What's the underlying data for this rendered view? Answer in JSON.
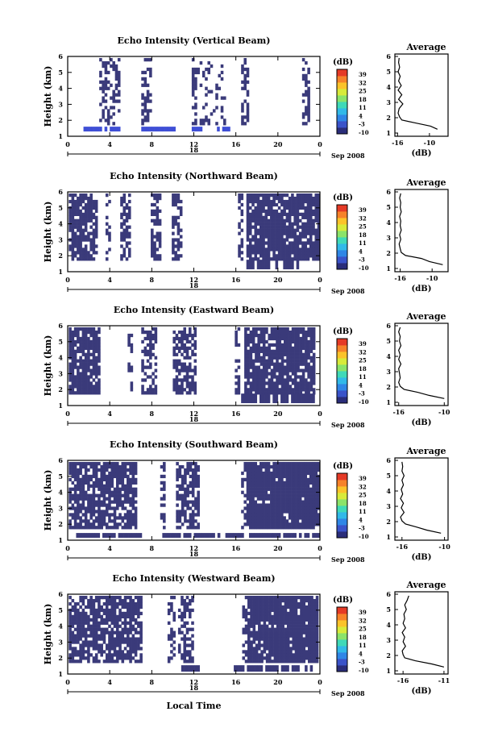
{
  "figure": {
    "xlabel": "Local Time",
    "date_label": "Sep 2008",
    "day_label": "18",
    "colorbar_unit": "(dB)",
    "colorbar_ticks": [
      "39",
      "32",
      "25",
      "18",
      "11",
      "4",
      "-3",
      "-10"
    ],
    "colorbar_colors": [
      "#2a2d7a",
      "#3a53c9",
      "#2f86e6",
      "#31b9e8",
      "#3fd9b8",
      "#8be36a",
      "#d8ea3a",
      "#fbc32a",
      "#f6822a",
      "#e53a26"
    ],
    "fill_color": "#3a3a7a",
    "strong_color": "#3f4fd6"
  },
  "chart_data": [
    {
      "type": "heatmap",
      "title": "Echo Intensity (Vertical Beam)",
      "ylabel": "Height (km)",
      "xlim": [
        0,
        24
      ],
      "ylim": [
        1,
        6
      ],
      "xticks": [
        "0",
        "4",
        "8",
        "12",
        "16",
        "20",
        "0"
      ],
      "yticks": [
        "1",
        "2",
        "3",
        "4",
        "5",
        "6"
      ],
      "profile": {
        "title": "Average",
        "xlabel": "(dB)",
        "xticks": [
          "-16",
          "-10"
        ],
        "xlim": [
          -16.5,
          -6.5
        ],
        "ylim": [
          1,
          6
        ],
        "yticks": [
          "1",
          "2",
          "3",
          "4",
          "5",
          "6"
        ],
        "heights": [
          1.25,
          1.45,
          1.65,
          1.85,
          2.05,
          2.3,
          2.6,
          2.9,
          3.2,
          3.5,
          3.8,
          4.1,
          4.4,
          4.7,
          5.0,
          5.3,
          5.6,
          5.9
        ],
        "values": [
          -8.5,
          -9.8,
          -12.5,
          -15.2,
          -15.6,
          -15.9,
          -15.7,
          -15.0,
          -15.8,
          -15.2,
          -15.9,
          -15.3,
          -15.8,
          -15.5,
          -15.9,
          -15.6,
          -15.8,
          -15.7
        ]
      }
    },
    {
      "type": "heatmap",
      "title": "Echo Intensity (Northward Beam)",
      "ylabel": "Height (km)",
      "xlim": [
        0,
        24
      ],
      "ylim": [
        1,
        6
      ],
      "xticks": [
        "0",
        "4",
        "8",
        "12",
        "16",
        "20",
        "0"
      ],
      "yticks": [
        "1",
        "2",
        "3",
        "4",
        "5",
        "6"
      ],
      "profile": {
        "title": "Average",
        "xlabel": "(dB)",
        "xticks": [
          "-16",
          "-10"
        ],
        "xlim": [
          -17,
          -7
        ],
        "ylim": [
          1,
          6
        ],
        "yticks": [
          "1",
          "2",
          "3",
          "4",
          "5",
          "6"
        ],
        "heights": [
          1.25,
          1.45,
          1.65,
          1.85,
          2.05,
          2.3,
          2.6,
          2.9,
          3.2,
          3.5,
          3.8,
          4.1,
          4.4,
          4.7,
          5.0,
          5.3,
          5.6,
          5.9
        ],
        "values": [
          -8.0,
          -10.5,
          -12.0,
          -15.0,
          -15.8,
          -16.0,
          -16.2,
          -15.9,
          -16.1,
          -15.8,
          -16.0,
          -15.9,
          -16.1,
          -15.8,
          -16.0,
          -15.9,
          -16.1,
          -15.9
        ]
      }
    },
    {
      "type": "heatmap",
      "title": "Echo Intensity (Eastward Beam)",
      "ylabel": "Height (km)",
      "xlim": [
        0,
        24
      ],
      "ylim": [
        1,
        6
      ],
      "xticks": [
        "0",
        "4",
        "8",
        "12",
        "16",
        "20",
        "0"
      ],
      "yticks": [
        "1",
        "2",
        "3",
        "4",
        "5",
        "6"
      ],
      "profile": {
        "title": "Average",
        "xlabel": "(dB)",
        "xticks": [
          "-16",
          "-10"
        ],
        "xlim": [
          -16.5,
          -9.5
        ],
        "ylim": [
          1,
          6
        ],
        "yticks": [
          "1",
          "2",
          "3",
          "4",
          "5",
          "6"
        ],
        "heights": [
          1.25,
          1.45,
          1.65,
          1.85,
          2.05,
          2.3,
          2.6,
          2.9,
          3.2,
          3.5,
          3.8,
          4.1,
          4.4,
          4.7,
          5.0,
          5.3,
          5.6,
          5.9
        ],
        "values": [
          -10.0,
          -12.0,
          -13.5,
          -15.3,
          -15.8,
          -16.0,
          -15.8,
          -15.9,
          -16.0,
          -15.7,
          -16.0,
          -15.8,
          -16.0,
          -15.7,
          -15.9,
          -15.8,
          -16.0,
          -15.8
        ]
      }
    },
    {
      "type": "heatmap",
      "title": "Echo Intensity (Southward Beam)",
      "ylabel": "Height (km)",
      "xlim": [
        0,
        24
      ],
      "ylim": [
        1,
        6
      ],
      "xticks": [
        "0",
        "4",
        "8",
        "12",
        "16",
        "20",
        "0"
      ],
      "yticks": [
        "1",
        "2",
        "3",
        "4",
        "5",
        "6"
      ],
      "profile": {
        "title": "Average",
        "xlabel": "(dB)",
        "xticks": [
          "-16",
          "-10"
        ],
        "xlim": [
          -17,
          -9.5
        ],
        "ylim": [
          1,
          6
        ],
        "yticks": [
          "1",
          "2",
          "3",
          "4",
          "5",
          "6"
        ],
        "heights": [
          1.25,
          1.45,
          1.65,
          1.85,
          2.05,
          2.3,
          2.6,
          2.9,
          3.2,
          3.5,
          3.8,
          4.1,
          4.4,
          4.7,
          5.0,
          5.3,
          5.6,
          5.9
        ],
        "values": [
          -10.5,
          -12.5,
          -14.0,
          -15.5,
          -16.0,
          -16.2,
          -15.7,
          -16.1,
          -15.8,
          -16.2,
          -15.9,
          -16.1,
          -15.8,
          -16.0,
          -15.7,
          -16.0,
          -15.9,
          -16.0
        ]
      }
    },
    {
      "type": "heatmap",
      "title": "Echo Intensity (Westward Beam)",
      "ylabel": "Height (km)",
      "xlim": [
        0,
        24
      ],
      "ylim": [
        1,
        6
      ],
      "xticks": [
        "0",
        "4",
        "8",
        "12",
        "16",
        "20",
        "0"
      ],
      "yticks": [
        "1",
        "2",
        "3",
        "4",
        "5",
        "6"
      ],
      "profile": {
        "title": "Average",
        "xlabel": "(dB)",
        "xticks": [
          "-16",
          "-11"
        ],
        "xlim": [
          -17,
          -10.5
        ],
        "ylim": [
          1,
          6
        ],
        "yticks": [
          "1",
          "2",
          "3",
          "4",
          "5",
          "6"
        ],
        "heights": [
          1.25,
          1.45,
          1.65,
          1.85,
          2.05,
          2.3,
          2.6,
          2.9,
          3.2,
          3.5,
          3.8,
          4.1,
          4.4,
          4.7,
          5.0,
          5.3,
          5.6,
          5.9
        ],
        "values": [
          -11.0,
          -12.5,
          -14.5,
          -15.8,
          -16.0,
          -16.1,
          -15.7,
          -16.0,
          -15.8,
          -16.1,
          -15.7,
          -16.0,
          -15.8,
          -15.9,
          -15.6,
          -15.8,
          -15.5,
          -15.3
        ]
      }
    }
  ]
}
